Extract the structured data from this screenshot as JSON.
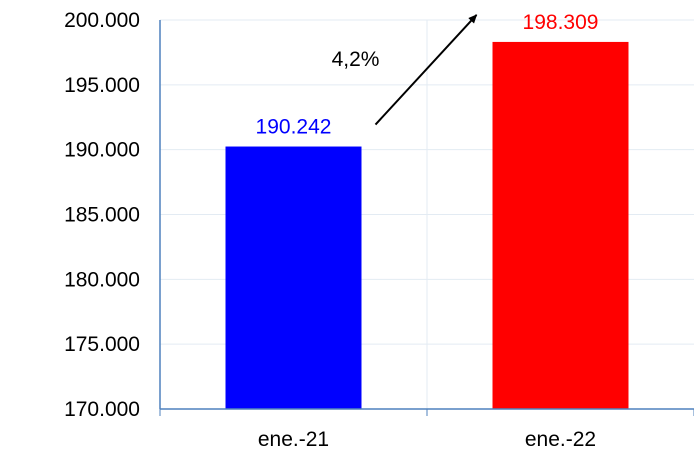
{
  "chart_data": {
    "type": "bar",
    "categories": [
      "ene.-21",
      "ene.-22"
    ],
    "values": [
      190242,
      198309
    ],
    "data_labels": [
      "190.242",
      "198.309"
    ],
    "ylim": [
      170000,
      200000
    ],
    "yticks": [
      170000,
      175000,
      180000,
      185000,
      190000,
      195000,
      200000
    ],
    "ytick_labels": [
      "170.000",
      "175.000",
      "180.000",
      "185.000",
      "190.000",
      "195.000",
      "200.000"
    ],
    "grid": true,
    "legend": "none",
    "colors": [
      "#0000ff",
      "#ff0000"
    ],
    "grid_color": "#e3ebf3",
    "axis_color": "#4f81bd",
    "annotation": {
      "text": "4,2%",
      "type": "arrow",
      "from": "ene.-21",
      "to": "ene.-22"
    }
  }
}
